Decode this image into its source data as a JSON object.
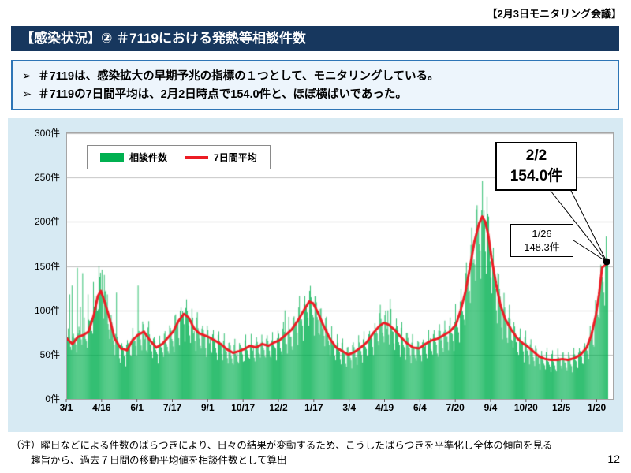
{
  "meta": {
    "header_right": "【2月3日モニタリング会議】",
    "page_number": "12"
  },
  "title": "【感染状況】② ＃7119における発熱等相談件数",
  "bullets": [
    "＃7119は、感染拡大の早期予兆の指標の１つとして、モニタリングしている。",
    "＃7119の7日間平均は、2月2日時点で154.0件と、ほぼ横ばいであった。"
  ],
  "note_lines": [
    "（注）曜日などによる件数のばらつきにより、日々の結果が変動するため、こうしたばらつきを平準化し全体の傾向を見る",
    "趣旨から、過去７日間の移動平均値を相談件数として算出"
  ],
  "colors": {
    "title_bar_bg": "#17375E",
    "title_bar_text": "#FFFFFF",
    "summary_border": "#2E75B6",
    "summary_bg": "#EDF5FC",
    "chart_panel_bg": "#D7EAF3"
  },
  "chart_data": {
    "type": "bar+line",
    "title": "＃7119における発熱等相談件数",
    "y_unit": "件",
    "ylim": [
      0,
      300
    ],
    "yticks": [
      0,
      50,
      100,
      150,
      200,
      250,
      300
    ],
    "grid": true,
    "grid_color": "#BFBFBF",
    "x_tick_labels": [
      "3/1",
      "4/16",
      "6/1",
      "7/17",
      "9/1",
      "10/17",
      "12/2",
      "1/17",
      "3/4",
      "4/19",
      "6/4",
      "7/20",
      "9/4",
      "10/20",
      "12/5",
      "1/20"
    ],
    "x_tick_interval_days": 46,
    "x_domain_days": 710,
    "total_days": 703,
    "legend_position": "top-left",
    "legend": [
      {
        "label": "相談件数",
        "type": "bar",
        "color": "#00B050"
      },
      {
        "label": "7日間平均",
        "type": "line",
        "color": "#EC1C24"
      }
    ],
    "bar_color": "#00B050",
    "line_color": "#EC1C24",
    "series": {
      "avg7_keypoints": [
        [
          0,
          68
        ],
        [
          7,
          62
        ],
        [
          14,
          70
        ],
        [
          21,
          72
        ],
        [
          28,
          76
        ],
        [
          35,
          95
        ],
        [
          40,
          116
        ],
        [
          44,
          122
        ],
        [
          48,
          112
        ],
        [
          55,
          92
        ],
        [
          62,
          68
        ],
        [
          70,
          57
        ],
        [
          78,
          55
        ],
        [
          85,
          66
        ],
        [
          92,
          72
        ],
        [
          100,
          76
        ],
        [
          108,
          66
        ],
        [
          116,
          58
        ],
        [
          124,
          62
        ],
        [
          132,
          70
        ],
        [
          138,
          76
        ],
        [
          145,
          88
        ],
        [
          152,
          96
        ],
        [
          158,
          92
        ],
        [
          165,
          80
        ],
        [
          172,
          74
        ],
        [
          184,
          70
        ],
        [
          192,
          66
        ],
        [
          200,
          62
        ],
        [
          208,
          56
        ],
        [
          216,
          52
        ],
        [
          224,
          54
        ],
        [
          230,
          56
        ],
        [
          238,
          60
        ],
        [
          246,
          58
        ],
        [
          254,
          62
        ],
        [
          262,
          60
        ],
        [
          270,
          64
        ],
        [
          276,
          66
        ],
        [
          284,
          72
        ],
        [
          292,
          78
        ],
        [
          300,
          88
        ],
        [
          308,
          100
        ],
        [
          315,
          110
        ],
        [
          320,
          108
        ],
        [
          326,
          98
        ],
        [
          334,
          82
        ],
        [
          342,
          68
        ],
        [
          350,
          58
        ],
        [
          358,
          54
        ],
        [
          366,
          50
        ],
        [
          374,
          53
        ],
        [
          382,
          58
        ],
        [
          390,
          64
        ],
        [
          398,
          74
        ],
        [
          406,
          82
        ],
        [
          412,
          86
        ],
        [
          418,
          84
        ],
        [
          426,
          78
        ],
        [
          434,
          70
        ],
        [
          442,
          63
        ],
        [
          450,
          58
        ],
        [
          458,
          57
        ],
        [
          466,
          62
        ],
        [
          474,
          66
        ],
        [
          482,
          68
        ],
        [
          490,
          72
        ],
        [
          498,
          76
        ],
        [
          506,
          84
        ],
        [
          512,
          100
        ],
        [
          518,
          120
        ],
        [
          524,
          148
        ],
        [
          530,
          178
        ],
        [
          536,
          198
        ],
        [
          540,
          206
        ],
        [
          544,
          200
        ],
        [
          548,
          185
        ],
        [
          552,
          160
        ],
        [
          558,
          130
        ],
        [
          564,
          105
        ],
        [
          570,
          90
        ],
        [
          578,
          78
        ],
        [
          586,
          68
        ],
        [
          594,
          62
        ],
        [
          598,
          60
        ],
        [
          606,
          54
        ],
        [
          614,
          48
        ],
        [
          622,
          45
        ],
        [
          630,
          44
        ],
        [
          638,
          44
        ],
        [
          644,
          45
        ],
        [
          652,
          44
        ],
        [
          660,
          46
        ],
        [
          668,
          50
        ],
        [
          676,
          58
        ],
        [
          682,
          72
        ],
        [
          688,
          95
        ],
        [
          692,
          118
        ],
        [
          696,
          148.3
        ],
        [
          700,
          151
        ],
        [
          703,
          154
        ]
      ],
      "bars": {
        "weekday_factors": [
          1.1,
          1.2,
          1.04,
          0.98,
          0.93,
          0.82,
          0.72
        ],
        "noise": 0.08,
        "seed": 7119,
        "spike_overrides": [
          [
            3,
            118
          ],
          [
            6,
            128
          ],
          [
            13,
            148
          ],
          [
            17,
            104
          ],
          [
            20,
            142
          ],
          [
            27,
            118
          ],
          [
            34,
            132
          ],
          [
            41,
            150
          ],
          [
            45,
            146
          ],
          [
            48,
            140
          ],
          [
            52,
            118
          ],
          [
            64,
            120
          ],
          [
            92,
            128
          ],
          [
            283,
            100
          ],
          [
            417,
            100
          ],
          [
            420,
            113
          ]
        ]
      }
    },
    "annotations": [
      {
        "date": "2/2",
        "value": 154.0,
        "lines": [
          "2/2",
          "154.0件"
        ],
        "style": "large"
      },
      {
        "date": "1/26",
        "value": 148.3,
        "lines": [
          "1/26",
          "148.3件"
        ],
        "style": "small"
      }
    ],
    "endpoint": {
      "day": 703,
      "value": 154.0
    }
  }
}
